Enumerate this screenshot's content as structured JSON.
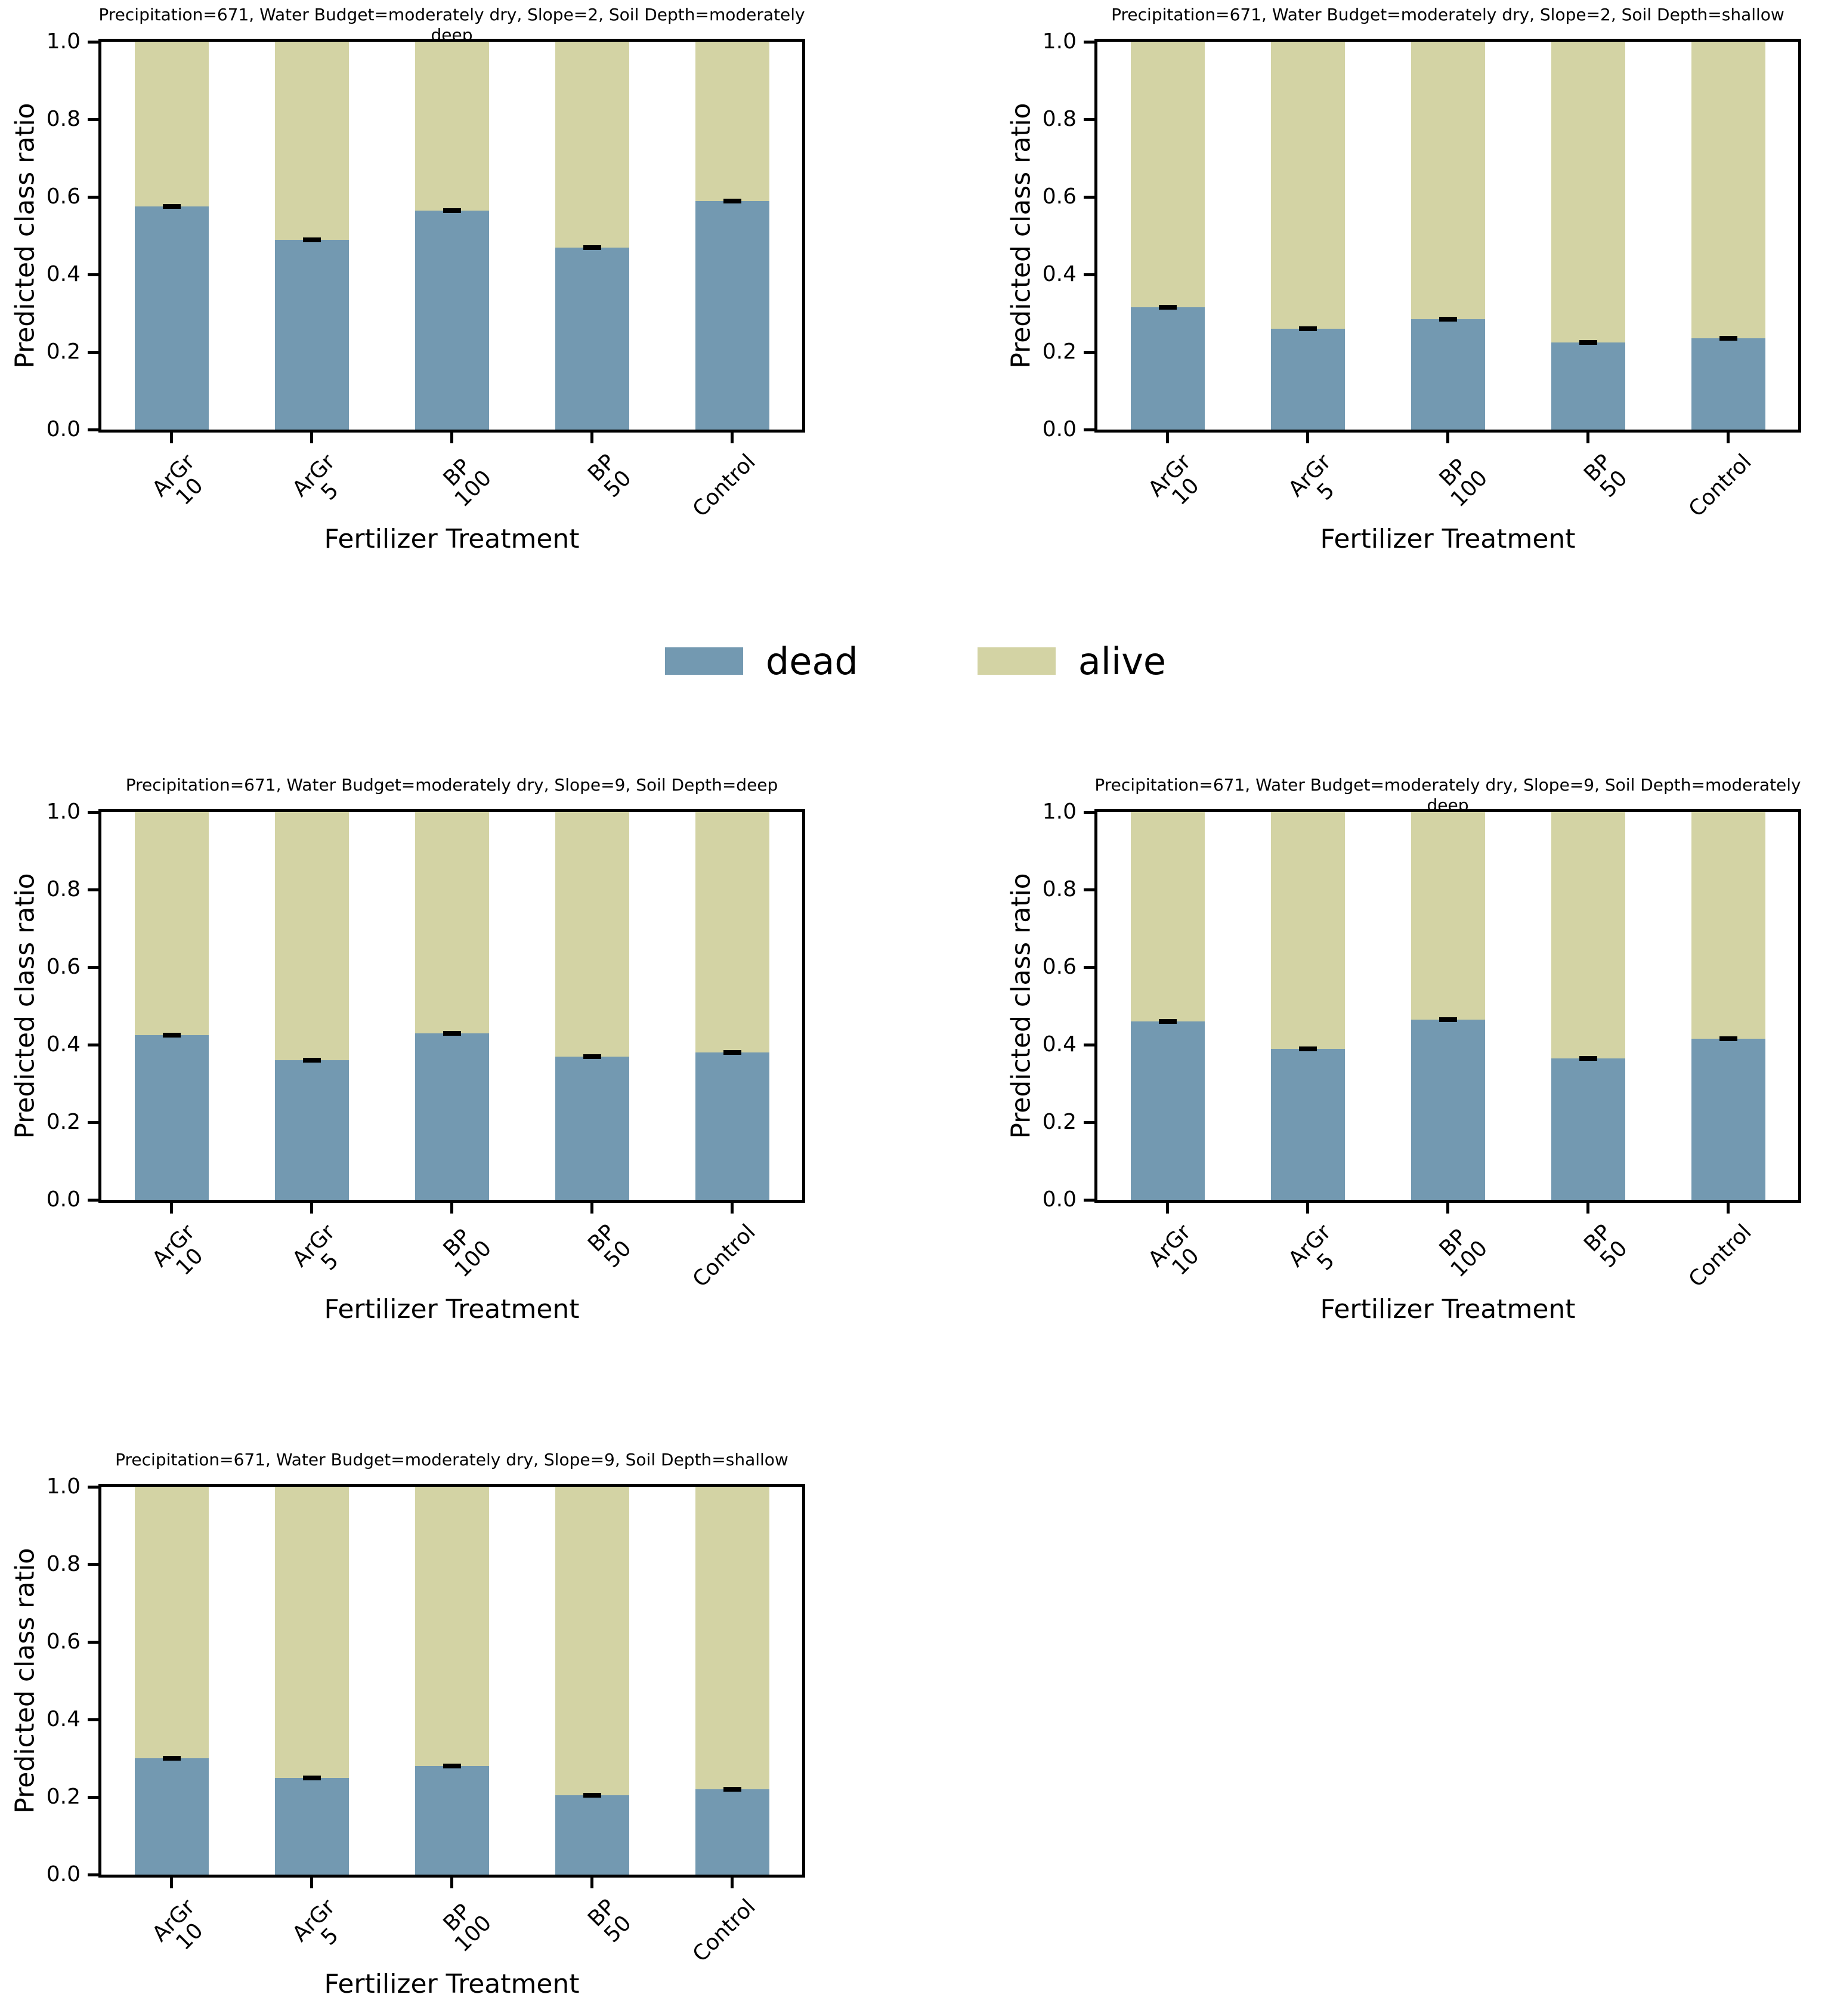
{
  "figure": {
    "yticks": [
      "0.0",
      "0.2",
      "0.4",
      "0.6",
      "0.8",
      "1.0"
    ],
    "legend": [
      {
        "label": "dead",
        "color": "#7399b1"
      },
      {
        "label": "alive",
        "color": "#d3d3a4"
      }
    ],
    "error_bar_color": "#000000"
  },
  "chart_data": [
    {
      "type": "bar",
      "stacked": true,
      "title": "Precipitation=671, Water Budget=moderately dry, Slope=2, Soil Depth=moderately deep",
      "categories": [
        "ArGr\n10",
        "ArGr\n5",
        "BP\n100",
        "BP\n50",
        "Control"
      ],
      "xlabel": "Fertilizer Treatment",
      "ylabel": "Predicted class ratio",
      "ylim": [
        0.0,
        1.0
      ],
      "series": [
        {
          "name": "dead",
          "color": "#7399b1",
          "values": [
            0.575,
            0.49,
            0.565,
            0.47,
            0.59
          ],
          "errors": [
            0.006,
            0.005,
            0.005,
            0.005,
            0.005
          ]
        },
        {
          "name": "alive",
          "color": "#d3d3a4",
          "values": [
            0.425,
            0.51,
            0.435,
            0.53,
            0.41
          ]
        }
      ]
    },
    {
      "type": "bar",
      "stacked": true,
      "title": "Precipitation=671, Water Budget=moderately dry, Slope=2, Soil Depth=shallow",
      "categories": [
        "ArGr\n10",
        "ArGr\n5",
        "BP\n100",
        "BP\n50",
        "Control"
      ],
      "xlabel": "Fertilizer Treatment",
      "ylabel": "Predicted class ratio",
      "ylim": [
        0.0,
        1.0
      ],
      "series": [
        {
          "name": "dead",
          "color": "#7399b1",
          "values": [
            0.315,
            0.26,
            0.285,
            0.225,
            0.235
          ],
          "errors": [
            0.005,
            0.005,
            0.005,
            0.005,
            0.005
          ]
        },
        {
          "name": "alive",
          "color": "#d3d3a4",
          "values": [
            0.685,
            0.74,
            0.715,
            0.775,
            0.765
          ]
        }
      ]
    },
    {
      "type": "bar",
      "stacked": true,
      "title": "Precipitation=671, Water Budget=moderately dry, Slope=9, Soil Depth=deep",
      "categories": [
        "ArGr\n10",
        "ArGr\n5",
        "BP\n100",
        "BP\n50",
        "Control"
      ],
      "xlabel": "Fertilizer Treatment",
      "ylabel": "Predicted class ratio",
      "ylim": [
        0.0,
        1.0
      ],
      "series": [
        {
          "name": "dead",
          "color": "#7399b1",
          "values": [
            0.425,
            0.36,
            0.43,
            0.37,
            0.38
          ],
          "errors": [
            0.005,
            0.005,
            0.005,
            0.005,
            0.005
          ]
        },
        {
          "name": "alive",
          "color": "#d3d3a4",
          "values": [
            0.575,
            0.64,
            0.57,
            0.63,
            0.62
          ]
        }
      ]
    },
    {
      "type": "bar",
      "stacked": true,
      "title": "Precipitation=671, Water Budget=moderately dry, Slope=9, Soil Depth=moderately deep",
      "categories": [
        "ArGr\n10",
        "ArGr\n5",
        "BP\n100",
        "BP\n50",
        "Control"
      ],
      "xlabel": "Fertilizer Treatment",
      "ylabel": "Predicted class ratio",
      "ylim": [
        0.0,
        1.0
      ],
      "series": [
        {
          "name": "dead",
          "color": "#7399b1",
          "values": [
            0.46,
            0.39,
            0.465,
            0.365,
            0.415
          ],
          "errors": [
            0.005,
            0.005,
            0.005,
            0.005,
            0.005
          ]
        },
        {
          "name": "alive",
          "color": "#d3d3a4",
          "values": [
            0.54,
            0.61,
            0.535,
            0.635,
            0.585
          ]
        }
      ]
    },
    {
      "type": "bar",
      "stacked": true,
      "title": "Precipitation=671, Water Budget=moderately dry, Slope=9, Soil Depth=shallow",
      "categories": [
        "ArGr\n10",
        "ArGr\n5",
        "BP\n100",
        "BP\n50",
        "Control"
      ],
      "xlabel": "Fertilizer Treatment",
      "ylabel": "Predicted class ratio",
      "ylim": [
        0.0,
        1.0
      ],
      "series": [
        {
          "name": "dead",
          "color": "#7399b1",
          "values": [
            0.3,
            0.25,
            0.28,
            0.205,
            0.22
          ],
          "errors": [
            0.005,
            0.005,
            0.005,
            0.005,
            0.005
          ]
        },
        {
          "name": "alive",
          "color": "#d3d3a4",
          "values": [
            0.7,
            0.75,
            0.72,
            0.795,
            0.78
          ]
        }
      ]
    }
  ]
}
